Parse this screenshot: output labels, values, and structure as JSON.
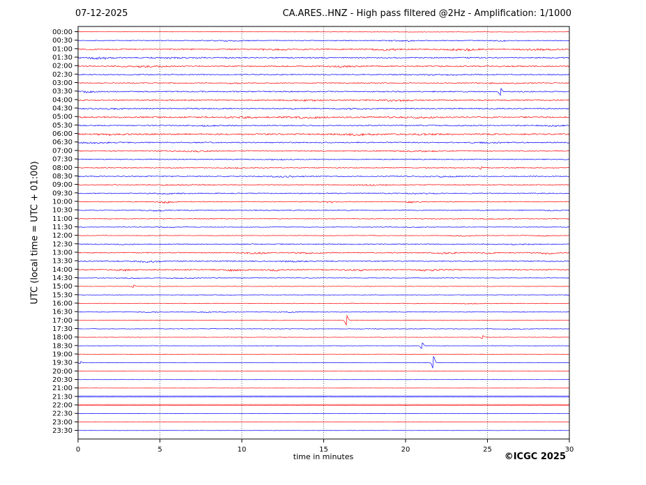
{
  "chart_data": {
    "type": "line",
    "subtype": "helicorder-seismogram",
    "title_left": "07-12-2025",
    "title_right": "CA.ARES..HNZ - High pass filtered @2Hz - Amplification: 1/1000",
    "ylabel": "UTC (local time = UTC + 01:00)",
    "xlabel": "time in minutes",
    "footer": "©ICGC 2025",
    "xlim": [
      0,
      30
    ],
    "x_ticks": [
      0,
      5,
      10,
      15,
      20,
      25,
      30
    ],
    "grid": "dotted vertical lines every 5 minutes",
    "legend": "none",
    "axis_color": "#000000",
    "grid_color": "#444444",
    "trace_colors": {
      "hour_rows": "#ff0000",
      "half_hour_rows": "#0000ff"
    },
    "row_interval_minutes": 30,
    "rows": [
      {
        "label": "00:00",
        "amp": 0.25,
        "bursts": [
          {
            "m": 23,
            "w": 14,
            "a": 0.5
          }
        ],
        "events": []
      },
      {
        "label": "00:30",
        "amp": 1.1,
        "bursts": [
          {
            "m": 9,
            "w": 2.5,
            "a": 0.8
          },
          {
            "m": 20,
            "w": 2,
            "a": 0.9
          },
          {
            "m": 26,
            "w": 2,
            "a": 0.7
          }
        ],
        "events": []
      },
      {
        "label": "01:00",
        "amp": 1.7,
        "bursts": [
          {
            "m": 12,
            "w": 1.5,
            "a": 1.5
          },
          {
            "m": 19,
            "w": 1.5,
            "a": 1.6
          },
          {
            "m": 23.5,
            "w": 2,
            "a": 1.8
          },
          {
            "m": 28,
            "w": 2,
            "a": 1.2
          }
        ],
        "events": []
      },
      {
        "label": "01:30",
        "amp": 1.6,
        "bursts": [
          {
            "m": 1.3,
            "w": 1.5,
            "a": 1.6
          },
          {
            "m": 6,
            "w": 2,
            "a": 0.8
          }
        ],
        "events": []
      },
      {
        "label": "02:00",
        "amp": 1.7,
        "bursts": [
          {
            "m": 4,
            "w": 3,
            "a": 0.8
          },
          {
            "m": 16,
            "w": 2,
            "a": 0.9
          }
        ],
        "events": []
      },
      {
        "label": "02:30",
        "amp": 1.4,
        "bursts": [
          {
            "m": 22,
            "w": 3,
            "a": 0.7
          }
        ],
        "events": []
      },
      {
        "label": "03:00",
        "amp": 1.2,
        "bursts": [
          {
            "m": 9.5,
            "w": 1,
            "a": 1.0
          },
          {
            "m": 26,
            "w": 3,
            "a": 0.6
          }
        ],
        "events": []
      },
      {
        "label": "03:30",
        "amp": 1.5,
        "bursts": [
          {
            "m": 0.5,
            "w": 1,
            "a": 1.2
          }
        ],
        "events": [
          {
            "m": 25.8,
            "a": 5
          }
        ]
      },
      {
        "label": "04:00",
        "amp": 1.7,
        "bursts": [
          {
            "m": 14,
            "w": 2,
            "a": 1.0
          },
          {
            "m": 19.5,
            "w": 2,
            "a": 1.2
          }
        ],
        "events": []
      },
      {
        "label": "04:30",
        "amp": 1.5,
        "bursts": [
          {
            "m": 2,
            "w": 2,
            "a": 0.8
          },
          {
            "m": 17,
            "w": 2,
            "a": 0.7
          }
        ],
        "events": []
      },
      {
        "label": "05:00",
        "amp": 1.9,
        "bursts": [
          {
            "m": 10,
            "w": 2,
            "a": 1.0
          },
          {
            "m": 14,
            "w": 2,
            "a": 1.2
          },
          {
            "m": 21,
            "w": 2,
            "a": 1.0
          }
        ],
        "events": []
      },
      {
        "label": "05:30",
        "amp": 1.5,
        "bursts": [
          {
            "m": 8,
            "w": 2,
            "a": 0.8
          },
          {
            "m": 29,
            "w": 1,
            "a": 1.0
          }
        ],
        "events": []
      },
      {
        "label": "06:00",
        "amp": 2.0,
        "bursts": [
          {
            "m": 2,
            "w": 2,
            "a": 1.0
          },
          {
            "m": 17,
            "w": 3,
            "a": 1.2
          },
          {
            "m": 21,
            "w": 2,
            "a": 1.0
          }
        ],
        "events": []
      },
      {
        "label": "06:30",
        "amp": 1.5,
        "bursts": [
          {
            "m": 1,
            "w": 2,
            "a": 1.0
          },
          {
            "m": 25,
            "w": 2,
            "a": 0.8
          }
        ],
        "events": []
      },
      {
        "label": "07:00",
        "amp": 1.4,
        "bursts": [
          {
            "m": 7,
            "w": 2,
            "a": 0.9
          },
          {
            "m": 21,
            "w": 2.5,
            "a": 0.9
          }
        ],
        "events": []
      },
      {
        "label": "07:30",
        "amp": 1.2,
        "bursts": [
          {
            "m": 12,
            "w": 2,
            "a": 0.6
          }
        ],
        "events": []
      },
      {
        "label": "08:00",
        "amp": 1.1,
        "bursts": [
          {
            "m": 9.5,
            "w": 1,
            "a": 0.9
          }
        ],
        "events": [
          {
            "m": 24.6,
            "a": 2.2
          }
        ]
      },
      {
        "label": "08:30",
        "amp": 1.3,
        "bursts": [
          {
            "m": 12.5,
            "w": 2,
            "a": 0.8
          },
          {
            "m": 22,
            "w": 2,
            "a": 0.9
          }
        ],
        "events": []
      },
      {
        "label": "09:00",
        "amp": 1.3,
        "bursts": [
          {
            "m": 6,
            "w": 3,
            "a": 0.6
          },
          {
            "m": 18,
            "w": 3,
            "a": 0.7
          }
        ],
        "events": []
      },
      {
        "label": "09:30",
        "amp": 1.3,
        "bursts": [
          {
            "m": 5.5,
            "w": 2,
            "a": 0.9
          },
          {
            "m": 21,
            "w": 2,
            "a": 0.8
          }
        ],
        "events": []
      },
      {
        "label": "10:00",
        "amp": 1.1,
        "bursts": [
          {
            "m": 5.3,
            "w": 1,
            "a": 1.6
          },
          {
            "m": 15.4,
            "w": 1,
            "a": 1.3
          },
          {
            "m": 20.3,
            "w": 1,
            "a": 1.3
          }
        ],
        "events": []
      },
      {
        "label": "10:30",
        "amp": 1.2,
        "bursts": [
          {
            "m": 4.8,
            "w": 1.5,
            "a": 1.2
          },
          {
            "m": 29,
            "w": 1,
            "a": 0.8
          }
        ],
        "events": []
      },
      {
        "label": "11:00",
        "amp": 1.1,
        "bursts": [
          {
            "m": 25,
            "w": 3,
            "a": 0.5
          }
        ],
        "events": []
      },
      {
        "label": "11:30",
        "amp": 0.85,
        "bursts": [
          {
            "m": 5.5,
            "w": 2,
            "a": 0.5
          },
          {
            "m": 20.5,
            "w": 1.5,
            "a": 0.6
          }
        ],
        "events": []
      },
      {
        "label": "12:00",
        "amp": 0.8,
        "bursts": [
          {
            "m": 23.5,
            "w": 1.5,
            "a": 0.9
          },
          {
            "m": 28.5,
            "w": 1,
            "a": 0.8
          }
        ],
        "events": []
      },
      {
        "label": "12:30",
        "amp": 1.2,
        "bursts": [
          {
            "m": 3,
            "w": 2,
            "a": 0.6
          },
          {
            "m": 27,
            "w": 2,
            "a": 0.7
          }
        ],
        "events": []
      },
      {
        "label": "13:00",
        "amp": 1.3,
        "bursts": [
          {
            "m": 10.8,
            "w": 1.5,
            "a": 1.6
          },
          {
            "m": 14,
            "w": 1.5,
            "a": 1.2
          },
          {
            "m": 22.3,
            "w": 1.5,
            "a": 1.5
          },
          {
            "m": 25,
            "w": 1,
            "a": 1.2
          },
          {
            "m": 28.7,
            "w": 1.5,
            "a": 1.8
          }
        ],
        "events": []
      },
      {
        "label": "13:30",
        "amp": 1.4,
        "bursts": [
          {
            "m": 4.3,
            "w": 1.5,
            "a": 1.5
          },
          {
            "m": 13,
            "w": 2,
            "a": 0.8
          }
        ],
        "events": []
      },
      {
        "label": "14:00",
        "amp": 1.5,
        "bursts": [
          {
            "m": 3,
            "w": 1.5,
            "a": 1.2
          },
          {
            "m": 9.7,
            "w": 1.5,
            "a": 1.8
          },
          {
            "m": 12,
            "w": 1,
            "a": 1.4
          },
          {
            "m": 17,
            "w": 1.5,
            "a": 1.4
          },
          {
            "m": 21.5,
            "w": 1.5,
            "a": 1.6
          }
        ],
        "events": []
      },
      {
        "label": "14:30",
        "amp": 0.8,
        "bursts": [
          {
            "m": 3.5,
            "w": 1.5,
            "a": 0.9
          },
          {
            "m": 6.5,
            "w": 1.5,
            "a": 0.8
          }
        ],
        "events": []
      },
      {
        "label": "15:00",
        "amp": 0.55,
        "bursts": [],
        "events": [
          {
            "m": 3.4,
            "a": 1.8
          }
        ]
      },
      {
        "label": "15:30",
        "amp": 0.75,
        "bursts": [
          {
            "m": 8,
            "w": 3,
            "a": 0.3
          }
        ],
        "events": []
      },
      {
        "label": "16:00",
        "amp": 0.9,
        "bursts": [
          {
            "m": 24,
            "w": 2,
            "a": 0.6
          }
        ],
        "events": []
      },
      {
        "label": "16:30",
        "amp": 0.95,
        "bursts": [
          {
            "m": 4.5,
            "w": 2,
            "a": 0.7
          },
          {
            "m": 8.5,
            "w": 2,
            "a": 0.6
          },
          {
            "m": 12.8,
            "w": 1,
            "a": 0.7
          }
        ],
        "events": []
      },
      {
        "label": "17:00",
        "amp": 0.65,
        "bursts": [],
        "events": [
          {
            "m": 16.4,
            "a": 7
          }
        ]
      },
      {
        "label": "17:30",
        "amp": 0.75,
        "bursts": [
          {
            "m": 27,
            "w": 2,
            "a": 0.4
          }
        ],
        "events": []
      },
      {
        "label": "18:00",
        "amp": 0.6,
        "bursts": [],
        "events": [
          {
            "m": 24.7,
            "a": 2.4
          }
        ]
      },
      {
        "label": "18:30",
        "amp": 0.65,
        "bursts": [
          {
            "m": 11.5,
            "w": 2,
            "a": 0.4
          }
        ],
        "events": [
          {
            "m": 21.0,
            "a": 4.5
          }
        ]
      },
      {
        "label": "19:00",
        "amp": 0.65,
        "bursts": [
          {
            "m": 4,
            "w": 2,
            "a": 0.4
          }
        ],
        "events": []
      },
      {
        "label": "19:30",
        "amp": 0.5,
        "bursts": [],
        "events": [
          {
            "m": 0.15,
            "a": 1.6
          },
          {
            "m": 21.7,
            "a": 9
          }
        ]
      },
      {
        "label": "20:00",
        "amp": 0.25,
        "bursts": [],
        "events": []
      },
      {
        "label": "20:30",
        "amp": 0.3,
        "bursts": [],
        "events": []
      },
      {
        "label": "21:00",
        "amp": 0.25,
        "bursts": [],
        "events": []
      },
      {
        "label": "21:30",
        "amp": 0.35,
        "bursts": [],
        "events": [],
        "glow": true
      },
      {
        "label": "22:00",
        "amp": 0.35,
        "bursts": [],
        "events": [],
        "glow": true
      },
      {
        "label": "22:30",
        "amp": 0.3,
        "bursts": [],
        "events": []
      },
      {
        "label": "23:00",
        "amp": 0.25,
        "bursts": [],
        "events": []
      },
      {
        "label": "23:30",
        "amp": 0.3,
        "bursts": [],
        "events": []
      }
    ]
  }
}
